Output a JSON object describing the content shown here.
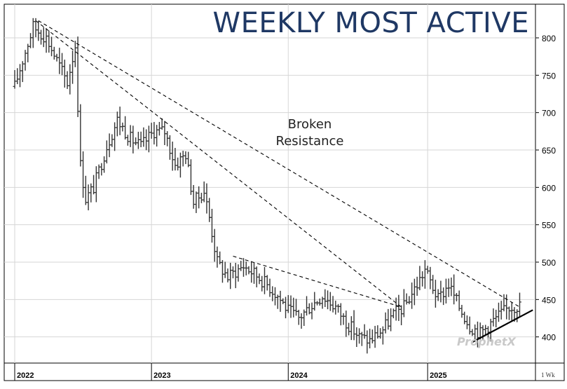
{
  "title": "WEEKLY MOST ACTIVE",
  "annotation": "Broken\nResistance",
  "brand": "ProphetX",
  "timeframe_label": "1 Wk",
  "colors": {
    "title": "#1f3864",
    "bars": "#333333",
    "grid": "#d6d6d6",
    "axis": "#000000"
  },
  "chart_data": {
    "type": "bar",
    "style": "ohlc-weekly",
    "x_axis": "date",
    "x_ticks": [
      "2022",
      "2023",
      "2024",
      "2025"
    ],
    "x_tick_dates": [
      "2022-01-03",
      "2023-01-02",
      "2024-01-01",
      "2025-01-06"
    ],
    "y_ticks": [
      400,
      450,
      500,
      550,
      600,
      650,
      700,
      750,
      800
    ],
    "ylim": [
      365,
      845
    ],
    "y_position": "right",
    "grid": true,
    "close_anchors": [
      [
        "2022-01-03",
        735
      ],
      [
        "2022-01-24",
        770
      ],
      [
        "2022-02-21",
        815
      ],
      [
        "2022-03-28",
        800
      ],
      [
        "2022-04-25",
        770
      ],
      [
        "2022-05-23",
        740
      ],
      [
        "2022-06-13",
        790
      ],
      [
        "2022-06-27",
        630
      ],
      [
        "2022-07-11",
        585
      ],
      [
        "2022-08-01",
        600
      ],
      [
        "2022-09-05",
        655
      ],
      [
        "2022-10-03",
        690
      ],
      [
        "2022-11-07",
        665
      ],
      [
        "2022-12-05",
        655
      ],
      [
        "2023-01-09",
        675
      ],
      [
        "2023-02-06",
        675
      ],
      [
        "2023-03-06",
        630
      ],
      [
        "2023-04-03",
        645
      ],
      [
        "2023-04-24",
        580
      ],
      [
        "2023-05-22",
        595
      ],
      [
        "2023-06-05",
        560
      ],
      [
        "2023-06-26",
        500
      ],
      [
        "2023-07-24",
        480
      ],
      [
        "2023-09-04",
        495
      ],
      [
        "2023-10-02",
        485
      ],
      [
        "2023-11-06",
        470
      ],
      [
        "2023-12-04",
        455
      ],
      [
        "2024-01-01",
        435
      ],
      [
        "2024-01-29",
        425
      ],
      [
        "2024-02-26",
        440
      ],
      [
        "2024-04-01",
        455
      ],
      [
        "2024-05-06",
        440
      ],
      [
        "2024-06-03",
        420
      ],
      [
        "2024-07-08",
        400
      ],
      [
        "2024-08-05",
        395
      ],
      [
        "2024-09-09",
        410
      ],
      [
        "2024-10-07",
        430
      ],
      [
        "2024-11-04",
        440
      ],
      [
        "2024-12-09",
        470
      ],
      [
        "2024-12-30",
        490
      ],
      [
        "2025-02-03",
        450
      ],
      [
        "2025-03-03",
        470
      ],
      [
        "2025-03-31",
        440
      ],
      [
        "2025-04-28",
        415
      ],
      [
        "2025-05-26",
        405
      ],
      [
        "2025-06-16",
        415
      ],
      [
        "2025-07-07",
        425
      ],
      [
        "2025-08-11",
        440
      ],
      [
        "2025-09-08",
        442
      ]
    ],
    "trendlines": [
      {
        "style": "dashed",
        "points": [
          [
            "2022-03-07",
            823
          ],
          [
            "2025-09-08",
            440
          ]
        ]
      },
      {
        "style": "dashed",
        "points": [
          [
            "2022-02-28",
            823
          ],
          [
            "2023-02-27",
            680
          ],
          [
            "2024-10-28",
            440
          ]
        ]
      },
      {
        "style": "dashed",
        "points": [
          [
            "2023-08-07",
            508
          ],
          [
            "2024-10-28",
            440
          ]
        ]
      },
      {
        "style": "solid",
        "points": [
          [
            "2025-05-05",
            393
          ],
          [
            "2025-10-13",
            436
          ]
        ]
      }
    ]
  }
}
